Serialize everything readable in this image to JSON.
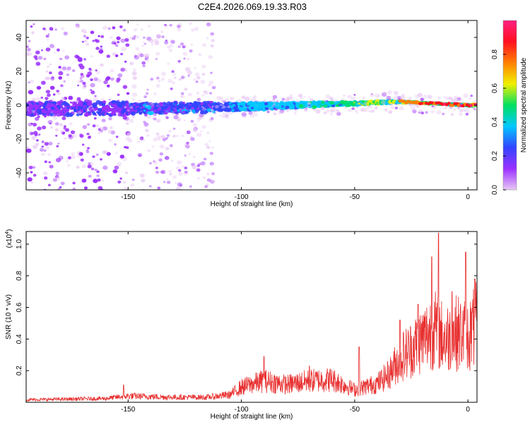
{
  "title": "C2E4.2026.069.19.33.R03",
  "chart_data": [
    {
      "type": "heatmap",
      "xlabel": "Height of straight line (km)",
      "ylabel": "Frequency (Hz)",
      "xlim": [
        -195,
        4
      ],
      "ylim": [
        -50,
        50
      ],
      "x_ticks": [
        -150,
        -100,
        -50,
        0
      ],
      "x_tick_labels": [
        "-150",
        "-100",
        "-50",
        "0"
      ],
      "y_ticks": [
        -40,
        -20,
        0,
        20,
        40
      ],
      "y_tick_labels": [
        "-40",
        "-20",
        "0",
        "20",
        "40"
      ],
      "ridge": {
        "x": [
          -195,
          -150,
          -100,
          -50,
          -30,
          0,
          4
        ],
        "freq": [
          -2,
          -2,
          -1,
          1,
          2,
          0,
          0
        ]
      },
      "colorbar": {
        "label": "Normalized spectral amplitude",
        "range": [
          0,
          1
        ],
        "ticks": [
          0.0,
          0.2,
          0.4,
          0.6,
          0.8
        ],
        "tick_labels": [
          "0.0",
          "0.2",
          "0.4",
          "0.6",
          "0.8"
        ],
        "colors": [
          "#e8c8f4",
          "#9b30ff",
          "#3344ff",
          "#00c8ff",
          "#00e060",
          "#f0f000",
          "#ff8000",
          "#ff1020",
          "#ff2080"
        ]
      }
    },
    {
      "type": "line",
      "xlabel": "Height of straight line (km)",
      "ylabel": "SNR (10 * v/v)",
      "scale_note": "(x10",
      "scale_exp": "4",
      "scale_close": ")",
      "xlim": [
        -195,
        4
      ],
      "ylim": [
        0,
        1.08
      ],
      "x_ticks": [
        -150,
        -100,
        -50,
        0
      ],
      "x_tick_labels": [
        "-150",
        "-100",
        "-50",
        "0"
      ],
      "y_ticks": [
        0.2,
        0.4,
        0.6,
        0.8,
        1.0
      ],
      "y_tick_labels": [
        "0.2",
        "0.4",
        "0.6",
        "0.8",
        "1.0"
      ],
      "series": [
        {
          "color": "#e83030",
          "envelope_x": [
            -195,
            -160,
            -150,
            -130,
            -115,
            -105,
            -100,
            -90,
            -80,
            -70,
            -60,
            -50,
            -40,
            -35,
            -30,
            -25,
            -20,
            -15,
            -10,
            -5,
            0,
            4
          ],
          "envelope_y": [
            0.02,
            0.03,
            0.05,
            0.04,
            0.04,
            0.06,
            0.12,
            0.17,
            0.14,
            0.17,
            0.18,
            0.1,
            0.15,
            0.22,
            0.35,
            0.42,
            0.5,
            0.58,
            0.5,
            0.55,
            0.52,
            0.62
          ],
          "peaks_x": [
            -152,
            -90,
            -70,
            -48,
            -30,
            -22,
            -16,
            -13,
            -7,
            -1,
            3
          ],
          "peaks_y": [
            0.11,
            0.29,
            0.23,
            0.35,
            0.52,
            0.62,
            0.92,
            1.07,
            0.7,
            0.95,
            0.78
          ]
        }
      ]
    }
  ]
}
